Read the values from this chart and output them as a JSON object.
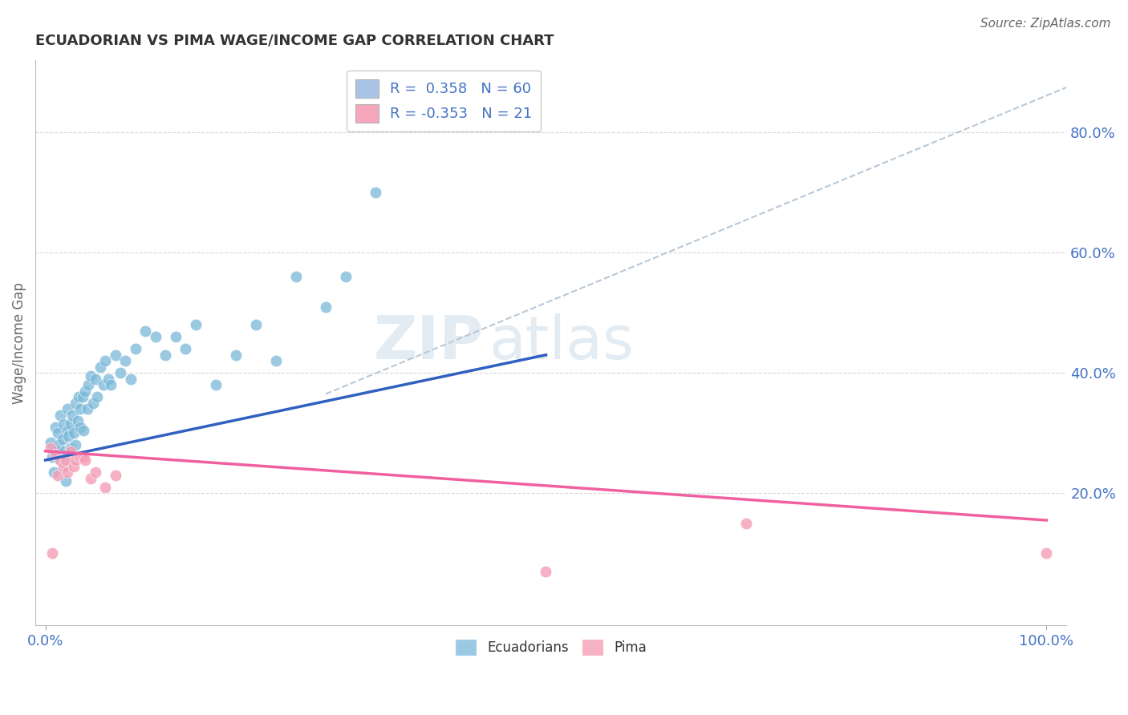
{
  "title": "ECUADORIAN VS PIMA WAGE/INCOME GAP CORRELATION CHART",
  "source": "Source: ZipAtlas.com",
  "xlabel": "",
  "ylabel": "Wage/Income Gap",
  "xlim": [
    -0.01,
    1.02
  ],
  "ylim": [
    -0.02,
    0.92
  ],
  "x_ticks": [
    0.0,
    1.0
  ],
  "x_tick_labels": [
    "0.0%",
    "100.0%"
  ],
  "y_ticks": [
    0.2,
    0.4,
    0.6,
    0.8
  ],
  "y_tick_labels": [
    "20.0%",
    "40.0%",
    "60.0%",
    "80.0%"
  ],
  "legend_items": [
    {
      "label": "R =  0.358   N = 60",
      "color": "#aac4e8"
    },
    {
      "label": "R = -0.353   N = 21",
      "color": "#f5a8bc"
    }
  ],
  "ecuadorians_color": "#7ab8d9",
  "pima_color": "#f4a0b8",
  "trend_ecuadorians_color": "#3060c0",
  "trend_pima_color": "#f060a0",
  "trend_reference_color": "#b8c8d8",
  "watermark_zip": "ZIP",
  "watermark_atlas": "atlas",
  "background_color": "#ffffff",
  "ecuadorians_x": [
    0.005,
    0.007,
    0.008,
    0.01,
    0.01,
    0.012,
    0.013,
    0.015,
    0.015,
    0.017,
    0.018,
    0.019,
    0.02,
    0.02,
    0.022,
    0.022,
    0.023,
    0.025,
    0.025,
    0.027,
    0.028,
    0.03,
    0.03,
    0.032,
    0.033,
    0.035,
    0.035,
    0.037,
    0.038,
    0.04,
    0.042,
    0.043,
    0.045,
    0.048,
    0.05,
    0.052,
    0.055,
    0.058,
    0.06,
    0.063,
    0.065,
    0.07,
    0.075,
    0.08,
    0.085,
    0.09,
    0.1,
    0.11,
    0.12,
    0.13,
    0.14,
    0.15,
    0.17,
    0.19,
    0.21,
    0.23,
    0.25,
    0.28,
    0.3,
    0.33
  ],
  "ecuadorians_y": [
    0.285,
    0.26,
    0.235,
    0.31,
    0.27,
    0.3,
    0.28,
    0.33,
    0.255,
    0.29,
    0.315,
    0.27,
    0.25,
    0.22,
    0.305,
    0.34,
    0.295,
    0.315,
    0.275,
    0.33,
    0.3,
    0.35,
    0.28,
    0.32,
    0.36,
    0.34,
    0.31,
    0.36,
    0.305,
    0.37,
    0.34,
    0.38,
    0.395,
    0.35,
    0.39,
    0.36,
    0.41,
    0.38,
    0.42,
    0.39,
    0.38,
    0.43,
    0.4,
    0.42,
    0.39,
    0.44,
    0.47,
    0.46,
    0.43,
    0.46,
    0.44,
    0.48,
    0.38,
    0.43,
    0.48,
    0.42,
    0.56,
    0.51,
    0.56,
    0.7
  ],
  "pima_x": [
    0.005,
    0.007,
    0.01,
    0.012,
    0.015,
    0.018,
    0.02,
    0.022,
    0.025,
    0.028,
    0.03,
    0.035,
    0.038,
    0.04,
    0.045,
    0.05,
    0.06,
    0.07,
    0.5,
    0.7,
    1.0
  ],
  "pima_y": [
    0.275,
    0.1,
    0.265,
    0.23,
    0.255,
    0.245,
    0.255,
    0.235,
    0.27,
    0.245,
    0.255,
    0.26,
    0.26,
    0.255,
    0.225,
    0.235,
    0.21,
    0.23,
    0.07,
    0.15,
    0.1
  ],
  "ecu_trend_x0": 0.0,
  "ecu_trend_y0": 0.255,
  "ecu_trend_x1": 0.5,
  "ecu_trend_y1": 0.43,
  "pima_trend_x0": 0.0,
  "pima_trend_y0": 0.27,
  "pima_trend_x1": 1.0,
  "pima_trend_y1": 0.155,
  "ref_trend_x0": 0.28,
  "ref_trend_y0": 0.365,
  "ref_trend_x1": 1.02,
  "ref_trend_y1": 0.875
}
